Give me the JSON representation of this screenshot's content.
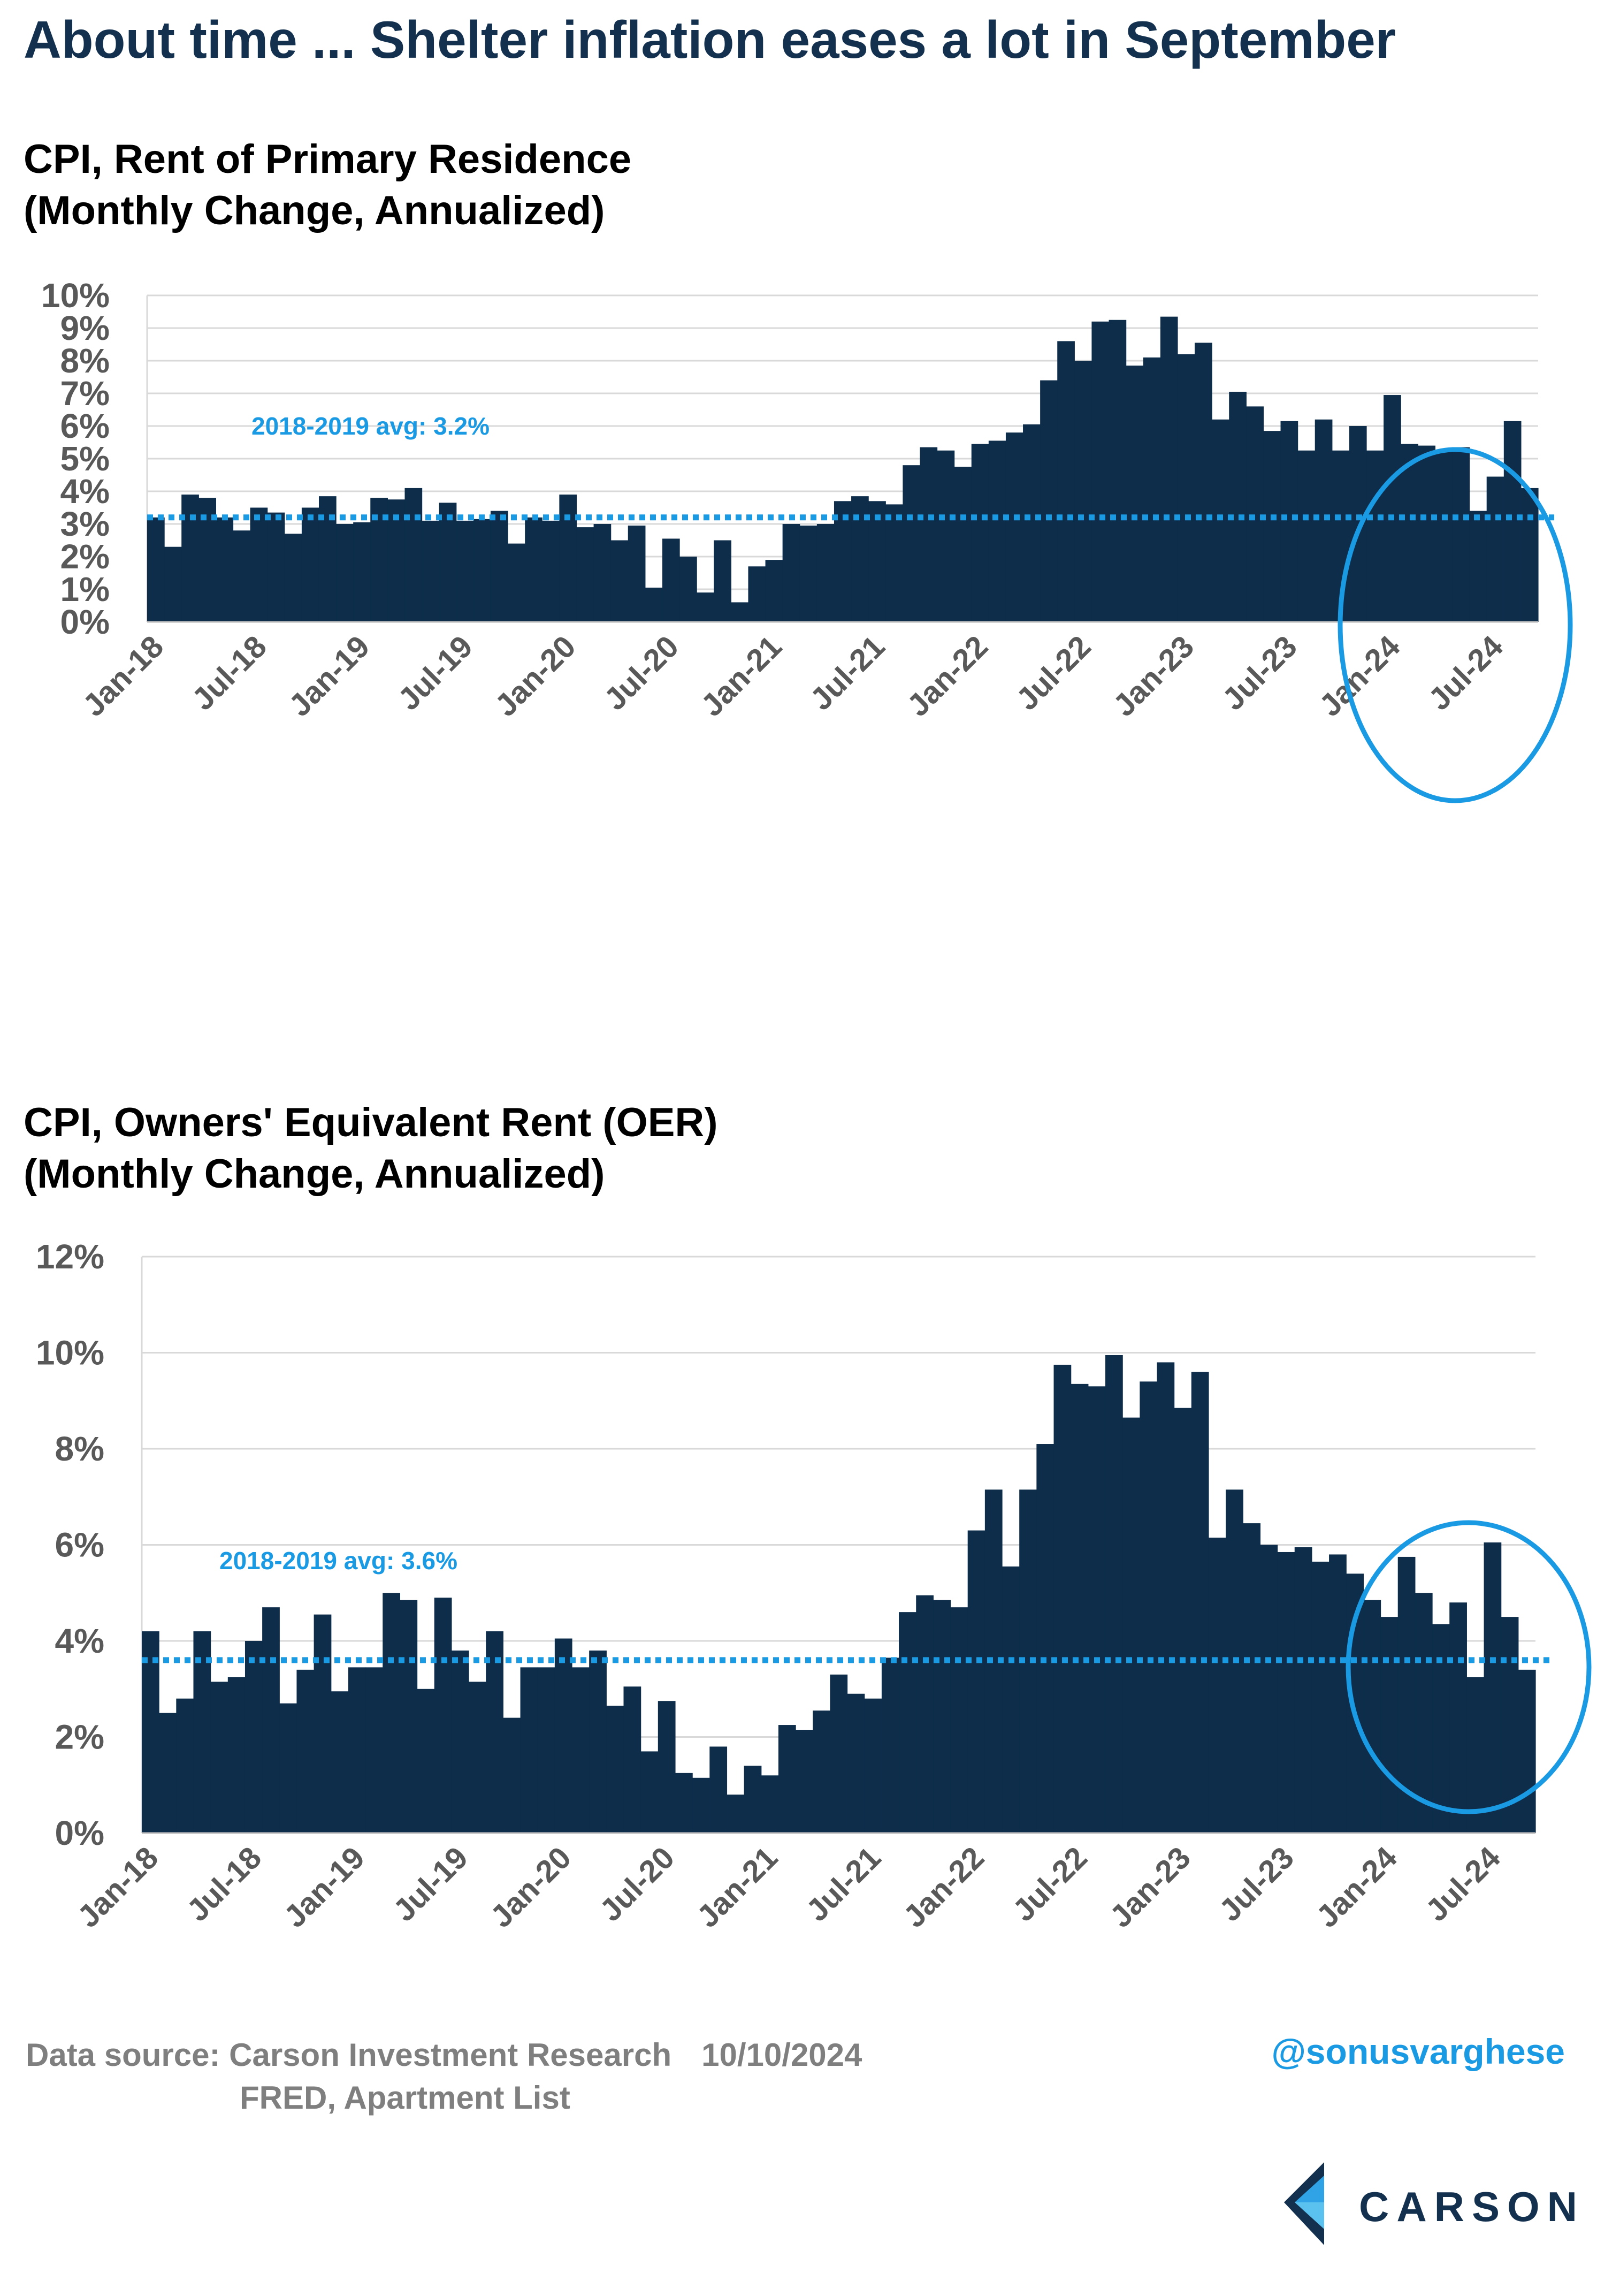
{
  "title": "About time ... Shelter inflation eases a lot in September",
  "chart_data": [
    {
      "type": "bar",
      "title": [
        "CPI, Rent of Primary Residence",
        "(Monthly Change, Annualized)"
      ],
      "x_tick_labels": [
        "Jan-18",
        "Jul-18",
        "Jan-19",
        "Jul-19",
        "Jan-20",
        "Jul-20",
        "Jan-21",
        "Jul-21",
        "Jan-22",
        "Jul-22",
        "Jan-23",
        "Jul-23",
        "Jan-24",
        "Jul-24"
      ],
      "y_tick_labels": [
        "0%",
        "1%",
        "2%",
        "3%",
        "4%",
        "5%",
        "6%",
        "7%",
        "8%",
        "9%",
        "10%"
      ],
      "ylim": [
        0,
        10
      ],
      "start": "Jan-18",
      "values": [
        3.2,
        2.3,
        3.9,
        3.8,
        3.2,
        2.8,
        3.5,
        3.35,
        2.7,
        3.5,
        3.85,
        3.0,
        3.05,
        3.8,
        3.75,
        4.1,
        3.1,
        3.65,
        3.1,
        3.15,
        3.4,
        2.4,
        3.2,
        3.1,
        3.9,
        2.9,
        3.0,
        2.5,
        2.95,
        1.05,
        2.55,
        2.0,
        0.9,
        2.5,
        0.6,
        1.7,
        1.9,
        3.0,
        2.95,
        3.0,
        3.7,
        3.85,
        3.7,
        3.6,
        4.8,
        5.35,
        5.25,
        4.75,
        5.45,
        5.55,
        5.8,
        6.05,
        7.4,
        8.6,
        8.0,
        9.2,
        9.25,
        7.85,
        8.1,
        9.35,
        8.2,
        8.55,
        6.2,
        7.05,
        6.6,
        5.85,
        6.15,
        5.25,
        6.2,
        5.25,
        6.0,
        5.25,
        6.95,
        5.45,
        5.4,
        5.25,
        5.35,
        3.4,
        4.45,
        6.15,
        4.1
      ],
      "avg_line": {
        "value": 3.2,
        "label": "2018-2019 avg: 3.2%"
      },
      "highlight": "circle around Jan-24 to Sep-24"
    },
    {
      "type": "bar",
      "title": [
        "CPI, Owners' Equivalent Rent (OER)",
        "(Monthly Change, Annualized)"
      ],
      "x_tick_labels": [
        "Jan-18",
        "Jul-18",
        "Jan-19",
        "Jul-19",
        "Jan-20",
        "Jul-20",
        "Jan-21",
        "Jul-21",
        "Jan-22",
        "Jul-22",
        "Jan-23",
        "Jul-23",
        "Jan-24",
        "Jul-24"
      ],
      "y_tick_labels": [
        "0%",
        "2%",
        "4%",
        "6%",
        "8%",
        "10%",
        "12%"
      ],
      "ylim": [
        0,
        12
      ],
      "start": "Jan-18",
      "values": [
        4.2,
        2.5,
        2.8,
        4.2,
        3.15,
        3.25,
        4.0,
        4.7,
        2.7,
        3.4,
        4.55,
        2.95,
        3.45,
        3.45,
        5.0,
        4.85,
        3.0,
        4.9,
        3.8,
        3.15,
        4.2,
        2.4,
        3.45,
        3.45,
        4.05,
        3.45,
        3.8,
        2.65,
        3.05,
        1.7,
        2.75,
        1.25,
        1.15,
        1.8,
        0.8,
        1.4,
        1.2,
        2.25,
        2.15,
        2.55,
        3.3,
        2.9,
        2.8,
        3.65,
        4.6,
        4.95,
        4.85,
        4.7,
        6.3,
        7.15,
        5.55,
        7.15,
        8.1,
        9.75,
        9.35,
        9.3,
        9.95,
        8.65,
        9.4,
        9.8,
        8.85,
        9.6,
        6.15,
        7.15,
        6.45,
        6.0,
        5.85,
        5.95,
        5.65,
        5.8,
        5.4,
        4.85,
        4.5,
        5.75,
        5.0,
        4.35,
        4.8,
        3.25,
        6.05,
        4.5,
        3.4
      ],
      "avg_line": {
        "value": 3.6,
        "label": "2018-2019 avg: 3.6%"
      },
      "highlight": "circle around Jan-24 to Sep-24"
    }
  ],
  "footer": {
    "source_line1": "Data source: Carson Investment Research",
    "date": "10/10/2024",
    "source_line2": "FRED, Apartment List",
    "handle": "@sonusvarghese",
    "logo_text": "CARSON"
  },
  "colors": {
    "bar": "#0d2d4b",
    "accent": "#1b9ae4",
    "title": "#13304f",
    "axis_text": "#595959",
    "grid": "#d9d9d9"
  }
}
